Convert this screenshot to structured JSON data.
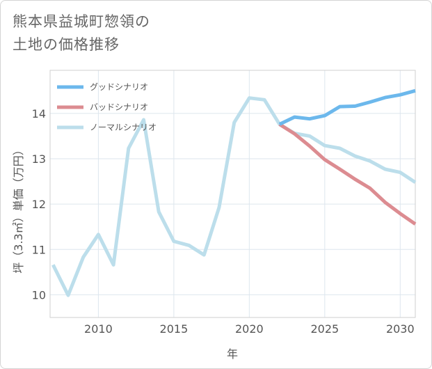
{
  "title": {
    "line1": "熊本県益城町惣領の",
    "line2": "土地の価格推移"
  },
  "chart_data": {
    "type": "line",
    "xlabel": "年",
    "ylabel": "坪（3.3㎡）単価（万円）",
    "xlim": [
      2006.8,
      2031
    ],
    "ylim": [
      9.5,
      14.95
    ],
    "xticks": [
      2010,
      2015,
      2020,
      2025,
      2030
    ],
    "yticks": [
      10,
      11,
      12,
      13,
      14
    ],
    "legend_position": "top-left",
    "grid": true,
    "series": [
      {
        "name": "グッドシナリオ",
        "color": "#6cb8ec",
        "x": [
          2022,
          2023,
          2024,
          2025,
          2026,
          2027,
          2028,
          2029,
          2030,
          2031
        ],
        "values": [
          13.76,
          13.92,
          13.88,
          13.95,
          14.15,
          14.16,
          14.25,
          14.35,
          14.41,
          14.5
        ]
      },
      {
        "name": "バッドシナリオ",
        "color": "#dc8c91",
        "x": [
          2022,
          2023,
          2024,
          2025,
          2026,
          2027,
          2028,
          2029,
          2030,
          2031
        ],
        "values": [
          13.76,
          13.55,
          13.28,
          12.98,
          12.77,
          12.55,
          12.35,
          12.04,
          11.79,
          11.56
        ]
      },
      {
        "name": "ノーマルシナリオ",
        "color": "#bcdeeb",
        "x": [
          2007,
          2008,
          2009,
          2010,
          2011,
          2012,
          2013,
          2014,
          2015,
          2016,
          2017,
          2018,
          2019,
          2020,
          2021,
          2022,
          2023,
          2024,
          2025,
          2026,
          2027,
          2028,
          2029,
          2030,
          2031
        ],
        "values": [
          10.66,
          9.99,
          10.83,
          11.33,
          10.66,
          13.23,
          13.86,
          11.83,
          11.18,
          11.09,
          10.88,
          11.93,
          13.8,
          14.34,
          14.3,
          13.76,
          13.56,
          13.5,
          13.29,
          13.23,
          13.06,
          12.95,
          12.77,
          12.7,
          12.48
        ]
      }
    ]
  }
}
